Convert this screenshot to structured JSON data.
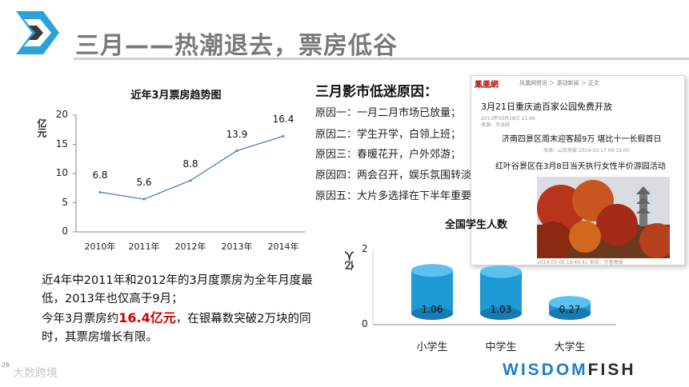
{
  "header": {
    "title": "三月——热潮退去，票房低谷"
  },
  "chart1": {
    "title": "近年3月票房趋势图",
    "ylabel": "亿元",
    "yticks": [
      "0",
      "5",
      "10",
      "15",
      "20"
    ],
    "point_labels": [
      "6.8",
      "5.6",
      "8.8",
      "13.9",
      "16.4"
    ],
    "categories": [
      "2010年",
      "2011年",
      "2012年",
      "2013年",
      "2014年"
    ]
  },
  "reasons": {
    "title": "三月影市低迷原因：",
    "items": [
      "原因一：一月二月市场已放量；",
      "原因二：学生开学，白领上班；",
      "原因三：春暖花开，户外郊游；",
      "原因四：两会召开，娱乐氛围转淡；",
      "原因五：大片多选择在下半年重要档期上映。"
    ]
  },
  "news": {
    "site": "鳳凰網",
    "crumb": "凤凰网资讯 ＞ 滚动新闻 ＞ 正文",
    "headline": "3月21日重庆逾百家公园免费开放",
    "meta1": "2013年03月18日 15:46",
    "meta2": "来源：华龙网",
    "sub": "济南四景区周末迎客超9万  堪比十一长假首日",
    "meta3": "来源：山东商报    2014-03-17 09:19:00",
    "sub2": "红叶谷景区在3月8日当天执行女性半价游园活动",
    "caption": "2014-03-05 16:49:41  来自：齐鲁晚报"
  },
  "chart2": {
    "title": "全国学生人数",
    "ylabel": "亿人",
    "yticks": [
      "0",
      "2"
    ],
    "value_labels": [
      "1.06",
      "1.03",
      "0.27"
    ],
    "categories": [
      "小学生",
      "中学生",
      "大学生"
    ]
  },
  "chart_data": [
    {
      "type": "line",
      "title": "近年3月票房趋势图",
      "xlabel": "",
      "ylabel": "亿元",
      "categories": [
        "2010年",
        "2011年",
        "2012年",
        "2013年",
        "2014年"
      ],
      "values": [
        6.8,
        5.6,
        8.8,
        13.9,
        16.4
      ],
      "ylim": [
        0,
        20
      ],
      "yticks": [
        0,
        5,
        10,
        15,
        20
      ],
      "grid": false,
      "color": "#4f81bd"
    },
    {
      "type": "bar",
      "title": "全国学生人数",
      "xlabel": "",
      "ylabel": "亿人",
      "categories": [
        "小学生",
        "中学生",
        "大学生"
      ],
      "values": [
        1.06,
        1.03,
        0.27
      ],
      "ylim": [
        0,
        2
      ],
      "yticks": [
        0,
        2
      ],
      "grid": false,
      "color": "#1e9ad6"
    }
  ],
  "paragraph": {
    "line1": "近4年中2011年和2012年的3月度票房为全年月度最低，2013年也仅高于9月；",
    "line2_prefix": "今年3月票房约",
    "line2_highlight": "16.4亿元",
    "line2_suffix": "，在银幕数突破2万块的同时，其票房增长有限。"
  },
  "footer": {
    "page_number": "26",
    "watermark": "大数跨境",
    "brand_part1": "WISDOM",
    "brand_part2": "FISH"
  },
  "colors": {
    "title": "#7a7a7a",
    "line": "#4f81bd",
    "bar": "#1e9ad6",
    "highlight": "#d00000",
    "brand_blue": "#1b7fc9"
  }
}
